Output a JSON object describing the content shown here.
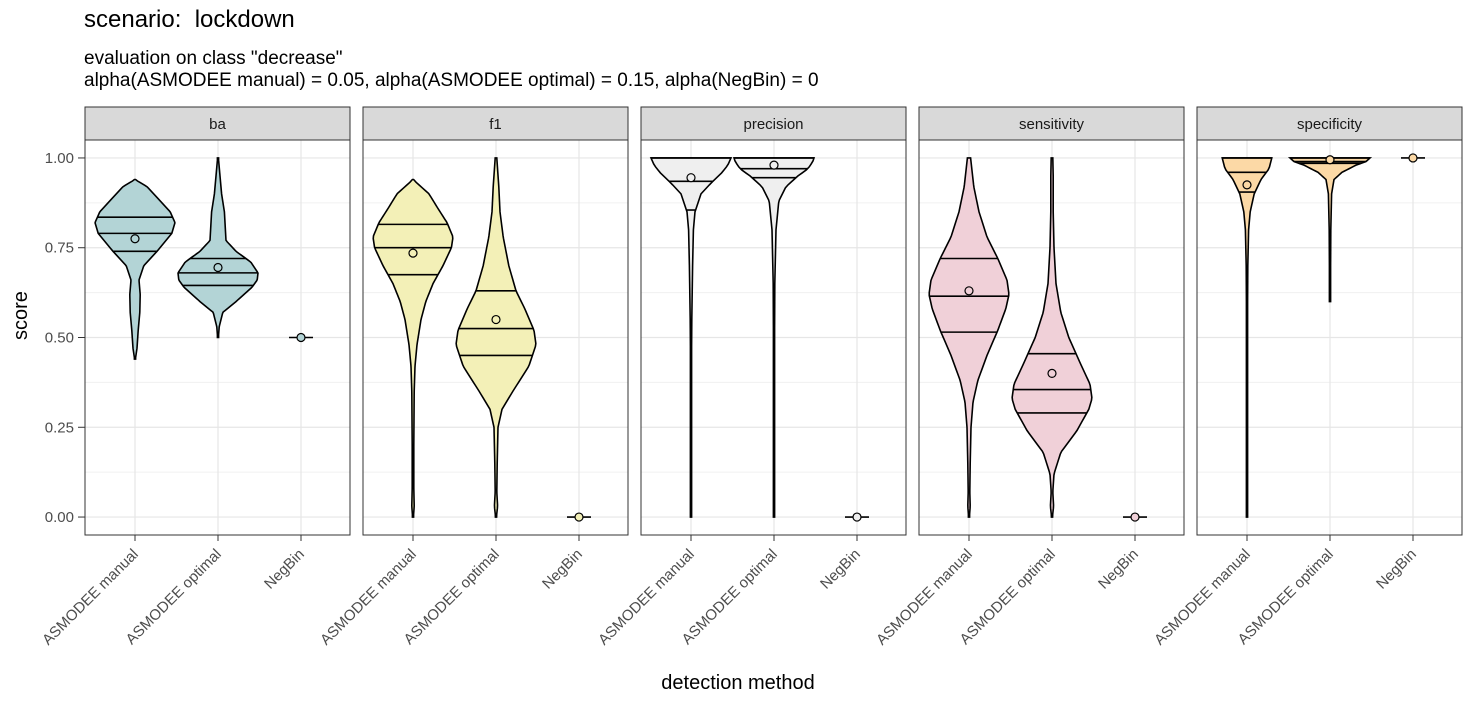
{
  "chart_data": {
    "type": "violin",
    "title": "scenario:  lockdown",
    "subtitle_line1": "evaluation on class \"decrease\"",
    "subtitle_line2": "alpha(ASMODEE manual) = 0.05, alpha(ASMODEE optimal) = 0.15, alpha(NegBin) = 0",
    "xlabel": "detection method",
    "ylabel": "score",
    "ylim": [
      -0.05,
      1.05
    ],
    "yticks": [
      "0.00",
      "0.25",
      "0.50",
      "0.75",
      "1.00"
    ],
    "categories": [
      "ASMODEE manual",
      "ASMODEE optimal",
      "NegBin"
    ],
    "grid": true,
    "facets": [
      {
        "name": "ba",
        "color": "#b3d4d6",
        "methods": [
          {
            "min": 0.44,
            "max": 0.94,
            "q25": 0.74,
            "median": 0.79,
            "q75": 0.835,
            "mean": 0.775,
            "density": [
              [
                0.44,
                0.01
              ],
              [
                0.47,
                0.05
              ],
              [
                0.52,
                0.08
              ],
              [
                0.57,
                0.12
              ],
              [
                0.62,
                0.13
              ],
              [
                0.66,
                0.1
              ],
              [
                0.7,
                0.22
              ],
              [
                0.74,
                0.55
              ],
              [
                0.79,
                0.92
              ],
              [
                0.82,
                1.0
              ],
              [
                0.85,
                0.88
              ],
              [
                0.89,
                0.55
              ],
              [
                0.92,
                0.3
              ],
              [
                0.94,
                0.0
              ]
            ]
          },
          {
            "min": 0.5,
            "max": 1.0,
            "q25": 0.645,
            "median": 0.68,
            "q75": 0.72,
            "mean": 0.695,
            "density": [
              [
                0.5,
                0.01
              ],
              [
                0.53,
                0.03
              ],
              [
                0.57,
                0.12
              ],
              [
                0.6,
                0.45
              ],
              [
                0.64,
                0.85
              ],
              [
                0.66,
                0.98
              ],
              [
                0.68,
                1.0
              ],
              [
                0.71,
                0.82
              ],
              [
                0.74,
                0.45
              ],
              [
                0.77,
                0.2
              ],
              [
                0.81,
                0.18
              ],
              [
                0.85,
                0.16
              ],
              [
                0.9,
                0.09
              ],
              [
                0.95,
                0.05
              ],
              [
                1.0,
                0.01
              ]
            ]
          },
          {
            "min": 0.5,
            "max": 0.5,
            "q25": 0.5,
            "median": 0.5,
            "q75": 0.5,
            "mean": 0.5,
            "density": []
          }
        ]
      },
      {
        "name": "f1",
        "color": "#f3f0b7",
        "methods": [
          {
            "min": 0.0,
            "max": 0.94,
            "q25": 0.675,
            "median": 0.75,
            "q75": 0.815,
            "mean": 0.735,
            "density": [
              [
                0.0,
                0.01
              ],
              [
                0.03,
                0.03
              ],
              [
                0.08,
                0.02
              ],
              [
                0.2,
                0.02
              ],
              [
                0.35,
                0.03
              ],
              [
                0.42,
                0.05
              ],
              [
                0.48,
                0.1
              ],
              [
                0.55,
                0.2
              ],
              [
                0.6,
                0.32
              ],
              [
                0.65,
                0.5
              ],
              [
                0.7,
                0.75
              ],
              [
                0.75,
                0.96
              ],
              [
                0.78,
                1.0
              ],
              [
                0.82,
                0.85
              ],
              [
                0.86,
                0.62
              ],
              [
                0.9,
                0.4
              ],
              [
                0.94,
                0.0
              ]
            ]
          },
          {
            "min": 0.0,
            "max": 1.0,
            "q25": 0.45,
            "median": 0.525,
            "q75": 0.63,
            "mean": 0.55,
            "density": [
              [
                0.0,
                0.01
              ],
              [
                0.03,
                0.04
              ],
              [
                0.07,
                0.02
              ],
              [
                0.15,
                0.03
              ],
              [
                0.25,
                0.05
              ],
              [
                0.3,
                0.15
              ],
              [
                0.35,
                0.42
              ],
              [
                0.42,
                0.82
              ],
              [
                0.48,
                1.0
              ],
              [
                0.52,
                0.95
              ],
              [
                0.58,
                0.72
              ],
              [
                0.63,
                0.5
              ],
              [
                0.7,
                0.32
              ],
              [
                0.78,
                0.18
              ],
              [
                0.85,
                0.1
              ],
              [
                0.92,
                0.07
              ],
              [
                1.0,
                0.02
              ]
            ]
          },
          {
            "min": 0.0,
            "max": 0.0,
            "q25": 0.0,
            "median": 0.0,
            "q75": 0.0,
            "mean": 0.0,
            "density": []
          }
        ]
      },
      {
        "name": "precision",
        "color": "#efefef",
        "methods": [
          {
            "min": 0.0,
            "max": 1.0,
            "q25": 0.855,
            "median": 0.935,
            "q75": 1.0,
            "mean": 0.945,
            "density": [
              [
                0.0,
                0.01
              ],
              [
                0.4,
                0.01
              ],
              [
                0.55,
                0.02
              ],
              [
                0.7,
                0.04
              ],
              [
                0.8,
                0.06
              ],
              [
                0.85,
                0.1
              ],
              [
                0.9,
                0.25
              ],
              [
                0.93,
                0.5
              ],
              [
                0.96,
                0.78
              ],
              [
                0.98,
                0.92
              ],
              [
                1.0,
                1.0
              ]
            ]
          },
          {
            "min": 0.0,
            "max": 1.0,
            "q25": 0.945,
            "median": 0.97,
            "q75": 1.0,
            "mean": 0.98,
            "density": [
              [
                0.0,
                0.01
              ],
              [
                0.4,
                0.01
              ],
              [
                0.65,
                0.02
              ],
              [
                0.8,
                0.05
              ],
              [
                0.88,
                0.12
              ],
              [
                0.92,
                0.3
              ],
              [
                0.95,
                0.6
              ],
              [
                0.97,
                0.85
              ],
              [
                0.99,
                0.97
              ],
              [
                1.0,
                1.0
              ]
            ]
          },
          {
            "min": 0.0,
            "max": 0.0,
            "q25": 0.0,
            "median": 0.0,
            "q75": 0.0,
            "mean": 0.0,
            "density": []
          }
        ]
      },
      {
        "name": "sensitivity",
        "color": "#f0d0d8",
        "methods": [
          {
            "min": 0.0,
            "max": 1.0,
            "q25": 0.515,
            "median": 0.615,
            "q75": 0.72,
            "mean": 0.63,
            "density": [
              [
                0.0,
                0.01
              ],
              [
                0.03,
                0.03
              ],
              [
                0.07,
                0.02
              ],
              [
                0.15,
                0.03
              ],
              [
                0.25,
                0.05
              ],
              [
                0.32,
                0.1
              ],
              [
                0.38,
                0.22
              ],
              [
                0.45,
                0.45
              ],
              [
                0.52,
                0.72
              ],
              [
                0.58,
                0.92
              ],
              [
                0.62,
                1.0
              ],
              [
                0.66,
                0.95
              ],
              [
                0.72,
                0.72
              ],
              [
                0.78,
                0.45
              ],
              [
                0.85,
                0.25
              ],
              [
                0.92,
                0.12
              ],
              [
                1.0,
                0.04
              ]
            ]
          },
          {
            "min": 0.0,
            "max": 1.0,
            "q25": 0.29,
            "median": 0.355,
            "q75": 0.455,
            "mean": 0.4,
            "density": [
              [
                0.0,
                0.01
              ],
              [
                0.03,
                0.04
              ],
              [
                0.07,
                0.02
              ],
              [
                0.12,
                0.05
              ],
              [
                0.18,
                0.22
              ],
              [
                0.24,
                0.62
              ],
              [
                0.3,
                0.92
              ],
              [
                0.33,
                1.0
              ],
              [
                0.37,
                0.95
              ],
              [
                0.43,
                0.7
              ],
              [
                0.5,
                0.42
              ],
              [
                0.57,
                0.22
              ],
              [
                0.65,
                0.1
              ],
              [
                0.75,
                0.05
              ],
              [
                0.85,
                0.03
              ],
              [
                0.95,
                0.03
              ],
              [
                1.0,
                0.02
              ]
            ]
          },
          {
            "min": 0.0,
            "max": 0.0,
            "q25": 0.0,
            "median": 0.0,
            "q75": 0.0,
            "mean": 0.0,
            "density": []
          }
        ]
      },
      {
        "name": "specificity",
        "color": "#fcd9a6",
        "methods": [
          {
            "min": 0.0,
            "max": 1.0,
            "q25": 0.905,
            "median": 0.96,
            "q75": 1.0,
            "mean": 0.925,
            "density": [
              [
                0.0,
                0.01
              ],
              [
                0.5,
                0.01
              ],
              [
                0.7,
                0.02
              ],
              [
                0.8,
                0.04
              ],
              [
                0.85,
                0.08
              ],
              [
                0.9,
                0.18
              ],
              [
                0.94,
                0.35
              ],
              [
                0.97,
                0.55
              ],
              [
                1.0,
                0.62
              ]
            ]
          },
          {
            "min": 0.6,
            "max": 1.0,
            "q25": 0.985,
            "median": 0.99,
            "q75": 1.0,
            "mean": 0.995,
            "density": [
              [
                0.6,
                0.01
              ],
              [
                0.8,
                0.02
              ],
              [
                0.9,
                0.04
              ],
              [
                0.94,
                0.1
              ],
              [
                0.96,
                0.3
              ],
              [
                0.98,
                0.65
              ],
              [
                0.99,
                0.9
              ],
              [
                1.0,
                1.0
              ]
            ]
          },
          {
            "min": 1.0,
            "max": 1.0,
            "q25": 1.0,
            "median": 1.0,
            "q75": 1.0,
            "mean": 1.0,
            "density": []
          }
        ]
      }
    ]
  }
}
